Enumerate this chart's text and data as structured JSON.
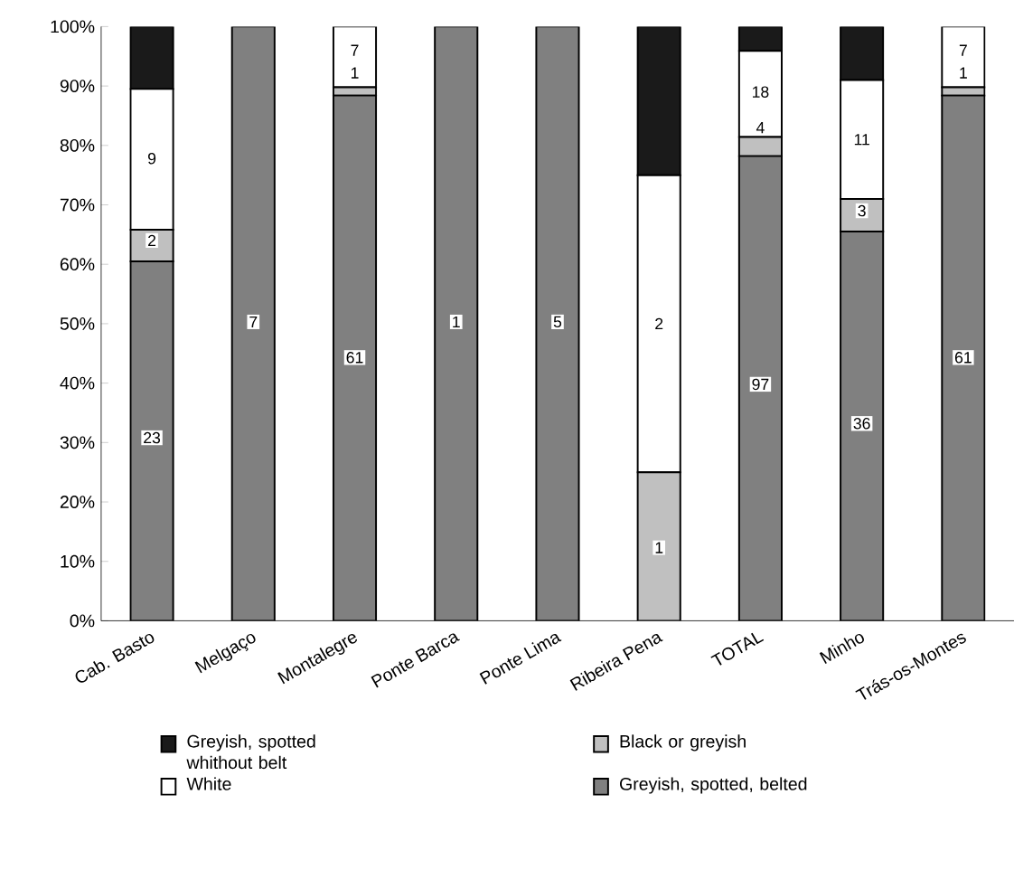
{
  "chart_data": {
    "type": "bar",
    "stacked": true,
    "legend": "bottom",
    "grid": false,
    "categories": [
      "Cab.  Basto",
      "Melgaço",
      "Montalegre",
      "Ponte  Barca",
      "Ponte  Lima",
      "Ribeira Pena",
      "TOTAL",
      "Minho",
      "Trás-os-Montes"
    ],
    "ylim": [
      0,
      100
    ],
    "yticks": [
      {
        "value": 0,
        "label": "0%"
      },
      {
        "value": 10,
        "label": "10%"
      },
      {
        "value": 20,
        "label": "20%"
      },
      {
        "value": 30,
        "label": "30%"
      },
      {
        "value": 40,
        "label": "40%"
      },
      {
        "value": 50,
        "label": "50%"
      },
      {
        "value": 60,
        "label": "60%"
      },
      {
        "value": 70,
        "label": "70%"
      },
      {
        "value": 80,
        "label": "80%"
      },
      {
        "value": 90,
        "label": "90%"
      },
      {
        "value": 100,
        "label": "100%"
      }
    ],
    "series": [
      {
        "name": "Greyish, spotted, belted",
        "color": "#808080",
        "values": [
          60.5,
          100,
          88.4,
          100,
          100,
          0,
          78.2,
          65.5,
          88.4
        ]
      },
      {
        "name": "Black or greyish",
        "color": "#c0c0c0",
        "values": [
          5.3,
          0,
          1.4,
          0,
          0,
          25,
          3.2,
          5.5,
          1.4
        ]
      },
      {
        "name": "White",
        "color": "#ffffff",
        "values": [
          23.7,
          0,
          10.2,
          0,
          0,
          50,
          14.5,
          20,
          10.2
        ]
      },
      {
        "name": "Greyish, spotted whithout belt",
        "color": "#1a1a1a",
        "values": [
          10.5,
          0,
          0,
          0,
          0,
          25,
          4.1,
          9.0,
          0
        ]
      }
    ],
    "annotations": [
      {
        "text": "23",
        "x": "Cab.  Basto",
        "y": 30.8
      },
      {
        "text": "2",
        "x": "Cab.  Basto",
        "y": 64
      },
      {
        "text": "9",
        "x": "Cab.  Basto",
        "y": 77.8
      },
      {
        "text": "7",
        "x": "Melgaço",
        "y": 50.3
      },
      {
        "text": "61",
        "x": "Montalegre",
        "y": 44.3
      },
      {
        "text": "1",
        "x": "Montalegre",
        "y": 92.2
      },
      {
        "text": "7",
        "x": "Montalegre",
        "y": 96
      },
      {
        "text": "1",
        "x": "Ponte  Barca",
        "y": 50.3
      },
      {
        "text": "5",
        "x": "Ponte  Lima",
        "y": 50.3
      },
      {
        "text": "1",
        "x": "Ribeira Pena",
        "y": 12.3
      },
      {
        "text": "2",
        "x": "Ribeira Pena",
        "y": 50
      },
      {
        "text": "97",
        "x": "TOTAL",
        "y": 39.8
      },
      {
        "text": "4",
        "x": "TOTAL",
        "y": 83
      },
      {
        "text": "18",
        "x": "TOTAL",
        "y": 89
      },
      {
        "text": "36",
        "x": "Minho",
        "y": 33.2
      },
      {
        "text": "3",
        "x": "Minho",
        "y": 69
      },
      {
        "text": "11",
        "x": "Minho",
        "y": 81
      },
      {
        "text": "61",
        "x": "Trás-os-Montes",
        "y": 44.3
      },
      {
        "text": "1",
        "x": "Trás-os-Montes",
        "y": 92.2
      },
      {
        "text": "7",
        "x": "Trás-os-Montes",
        "y": 96
      }
    ]
  }
}
